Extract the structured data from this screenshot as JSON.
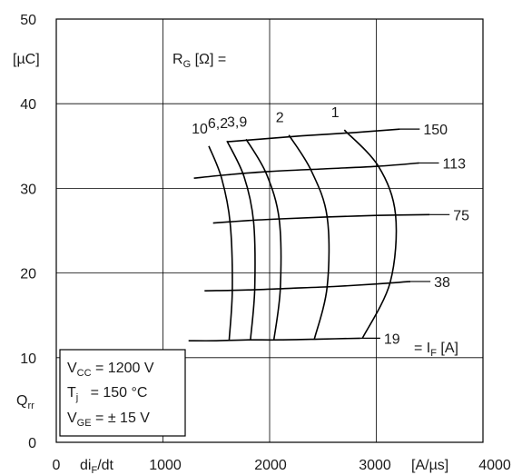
{
  "chart_data": {
    "type": "line",
    "xlim": [
      0,
      4000
    ],
    "ylim": [
      0,
      50
    ],
    "x_ticks": [
      "0",
      "1000",
      "2000",
      "3000",
      "4000"
    ],
    "y_ticks": [
      "0",
      "10",
      "20",
      "30",
      "40",
      "50"
    ],
    "grid": true,
    "y_unit": "[µC]",
    "y_symbol": "Q",
    "y_symbol_sub": "rr",
    "x_symbol": "di",
    "x_symbol_sub": "F",
    "x_symbol_suffix": "/dt",
    "x_unit": "[A/µs]",
    "rg_header": {
      "main": "R",
      "sub": "G",
      "rest": " [Ω] ="
    },
    "if_header": {
      "prefix": "= I",
      "sub": "F",
      "rest": " [A]"
    },
    "conditions": [
      {
        "main": "V",
        "sub": "CC",
        "rest": " = 1200 V"
      },
      {
        "main": "T",
        "sub": "j",
        "rest": "   = 150 °C"
      },
      {
        "main": "V",
        "sub": "GE",
        "rest": " = ± 15 V"
      }
    ],
    "series_if": [
      {
        "name": "150",
        "x": [
          1600,
          1900,
          2300,
          2800,
          3220
        ],
        "y": [
          35.5,
          35.8,
          36.2,
          36.6,
          37.0
        ]
      },
      {
        "name": "113",
        "x": [
          1290,
          1600,
          2000,
          2500,
          3000,
          3400
        ],
        "y": [
          31.2,
          31.6,
          32.0,
          32.3,
          32.6,
          33.0
        ]
      },
      {
        "name": "75",
        "x": [
          1470,
          1800,
          2100,
          2500,
          3000,
          3500
        ],
        "y": [
          25.9,
          26.2,
          26.4,
          26.6,
          26.8,
          26.9
        ]
      },
      {
        "name": "38",
        "x": [
          1390,
          1800,
          2200,
          2600,
          3000,
          3320
        ],
        "y": [
          17.9,
          18.0,
          18.2,
          18.4,
          18.7,
          19.0
        ]
      },
      {
        "name": "19",
        "x": [
          1240,
          1500,
          1800,
          2100,
          2500,
          2850
        ],
        "y": [
          12.0,
          12.0,
          12.1,
          12.1,
          12.2,
          12.3
        ]
      }
    ],
    "series_rg": [
      {
        "name": "10",
        "x": [
          1430,
          1550,
          1630,
          1650,
          1620
        ],
        "y": [
          35.0,
          31.2,
          25.9,
          18.0,
          12.0
        ]
      },
      {
        "name": "6,2",
        "x": [
          1600,
          1760,
          1850,
          1860,
          1820
        ],
        "y": [
          35.6,
          31.4,
          26.0,
          18.1,
          12.1
        ]
      },
      {
        "name": "3,9",
        "x": [
          1780,
          1970,
          2090,
          2100,
          2040
        ],
        "y": [
          35.8,
          31.7,
          26.3,
          18.2,
          12.1
        ]
      },
      {
        "name": "2",
        "x": [
          2180,
          2390,
          2540,
          2540,
          2420
        ],
        "y": [
          36.3,
          32.1,
          26.6,
          18.4,
          12.2
        ]
      },
      {
        "name": "1",
        "x": [
          2700,
          3020,
          3180,
          3130,
          2870
        ],
        "y": [
          36.9,
          32.6,
          26.9,
          18.9,
          12.3
        ]
      }
    ],
    "rg_labels": [
      "10",
      "6,2",
      "3,9",
      "2",
      "1"
    ]
  }
}
